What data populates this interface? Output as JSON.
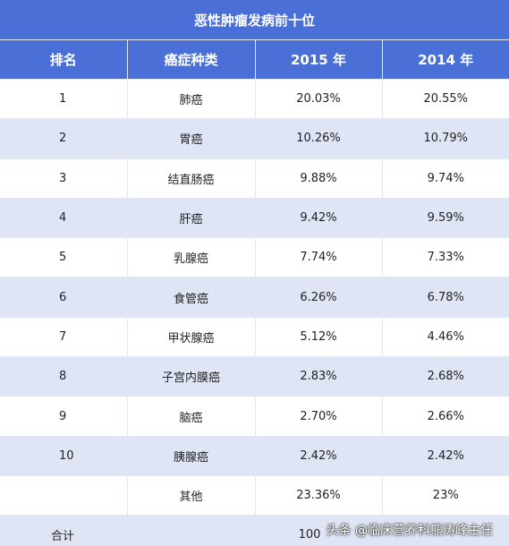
{
  "title": "恶性肿瘤发病前十位",
  "headers": [
    "排名",
    "癌症种类",
    "2015 年",
    "2014 年"
  ],
  "rows": [
    {
      "rank": "1",
      "type": "肺癌",
      "y2015": "20.03%",
      "y2014": "20.55%"
    },
    {
      "rank": "2",
      "type": "胃癌",
      "y2015": "10.26%",
      "y2014": "10.79%"
    },
    {
      "rank": "3",
      "type": "结直肠癌",
      "y2015": "9.88%",
      "y2014": "9.74%"
    },
    {
      "rank": "4",
      "type": "肝癌",
      "y2015": "9.42%",
      "y2014": "9.59%"
    },
    {
      "rank": "5",
      "type": "乳腺癌",
      "y2015": "7.74%",
      "y2014": "7.33%"
    },
    {
      "rank": "6",
      "type": "食管癌",
      "y2015": "6.26%",
      "y2014": "6.78%"
    },
    {
      "rank": "7",
      "type": "甲状腺癌",
      "y2015": "5.12%",
      "y2014": "4.46%"
    },
    {
      "rank": "8",
      "type": "子宫内膜癌",
      "y2015": "2.83%",
      "y2014": "2.68%"
    },
    {
      "rank": "9",
      "type": "脑癌",
      "y2015": "2.70%",
      "y2014": "2.66%"
    },
    {
      "rank": "10",
      "type": "胰腺癌",
      "y2015": "2.42%",
      "y2014": "2.42%"
    },
    {
      "rank": "",
      "type": "其他",
      "y2015": "23.36%",
      "y2014": "23%"
    }
  ],
  "total": {
    "label": "合计",
    "type": "",
    "y2015": "100",
    "y2014": ""
  },
  "watermark": "头条 @临床营养科熊涛峰主任",
  "colors": {
    "header_bg": "#4a6fd6",
    "stripe_bg": "#dfe5f5",
    "row_bg": "#ffffff"
  }
}
